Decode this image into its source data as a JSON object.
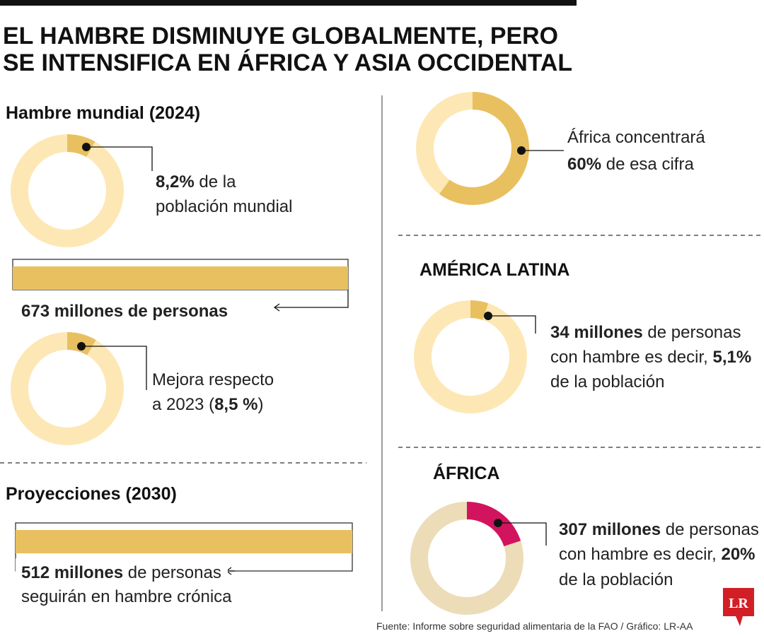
{
  "title": {
    "line1": "EL HAMBRE DISMINUYE GLOBALMENTE, PERO",
    "line2": "SE INTENSIFICA EN ÁFRICA Y ASIA OCCIDENTAL"
  },
  "world": {
    "heading": "Hambre mundial (2024)",
    "share": {
      "value": 8.2,
      "label": "8,2%",
      "line1_rest": "de la",
      "line2": "población mundial"
    },
    "people": "673 millones de personas",
    "previous": {
      "value": 8.5,
      "label": "8,5 %",
      "line1": "Mejora respecto",
      "line2_before": "a 2023 (",
      "line2_after": ")"
    }
  },
  "projections": {
    "heading": "Proyecciones (2030)",
    "people": "512 millones",
    "people_rest": "de personas",
    "line2": "seguirán en hambre crónica",
    "africa_share": {
      "value": 60,
      "label": "60%",
      "line1": "África concentrará",
      "line2_rest": "de esa cifra"
    }
  },
  "regions": [
    {
      "name": "AMÉRICA LATINA",
      "people": "34 millones",
      "line1_rest": "de personas",
      "line2_before": "con hambre es decir,",
      "value": 5.1,
      "label": "5,1%",
      "line3": "de la población"
    },
    {
      "name": "ÁFRICA",
      "people": "307 millones",
      "line1_rest": "de personas",
      "line2_before": "con hambre es decir,",
      "value": 20,
      "label": "20%",
      "line3": "de la población"
    }
  ],
  "source": "Fuente: Informe sobre seguridad alimentaria de la FAO / Gráfico: LR-AA",
  "logo": "LR"
}
